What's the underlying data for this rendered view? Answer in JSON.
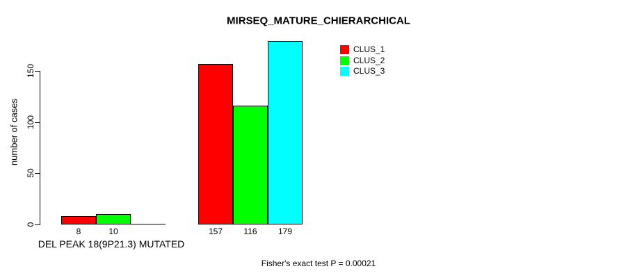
{
  "title": "MIRSEQ_MATURE_CHIERARCHICAL",
  "chart_data": {
    "type": "bar",
    "title": "MIRSEQ_MATURE_CHIERARCHICAL",
    "ylabel": "number of cases",
    "xlabel": "DEL PEAK 18(9P21.3) MUTATED",
    "yticks": [
      0,
      50,
      100,
      150
    ],
    "ylim": [
      0,
      180
    ],
    "grid": false,
    "legend_position": "top-right",
    "annotation": "Fisher's exact test P = 0.00021",
    "groups": [
      {
        "label": "DEL PEAK 18(9P21.3) MUTATED",
        "bars": [
          {
            "series": "CLUS_1",
            "value": 8,
            "label": "8",
            "color": "#ff0000"
          },
          {
            "series": "CLUS_2",
            "value": 10,
            "label": "10",
            "color": "#00ff00"
          },
          {
            "series": "CLUS_3",
            "value": 0,
            "label": "",
            "color": "#00ffff"
          }
        ]
      },
      {
        "label": "",
        "bars": [
          {
            "series": "CLUS_1",
            "value": 157,
            "label": "157",
            "color": "#ff0000"
          },
          {
            "series": "CLUS_2",
            "value": 116,
            "label": "116",
            "color": "#00ff00"
          },
          {
            "series": "CLUS_3",
            "value": 179,
            "label": "179",
            "color": "#00ffff"
          }
        ]
      }
    ],
    "legend": [
      {
        "label": "CLUS_1",
        "color": "#ff0000"
      },
      {
        "label": "CLUS_2",
        "color": "#00ff00"
      },
      {
        "label": "CLUS_3",
        "color": "#00ffff"
      }
    ]
  }
}
